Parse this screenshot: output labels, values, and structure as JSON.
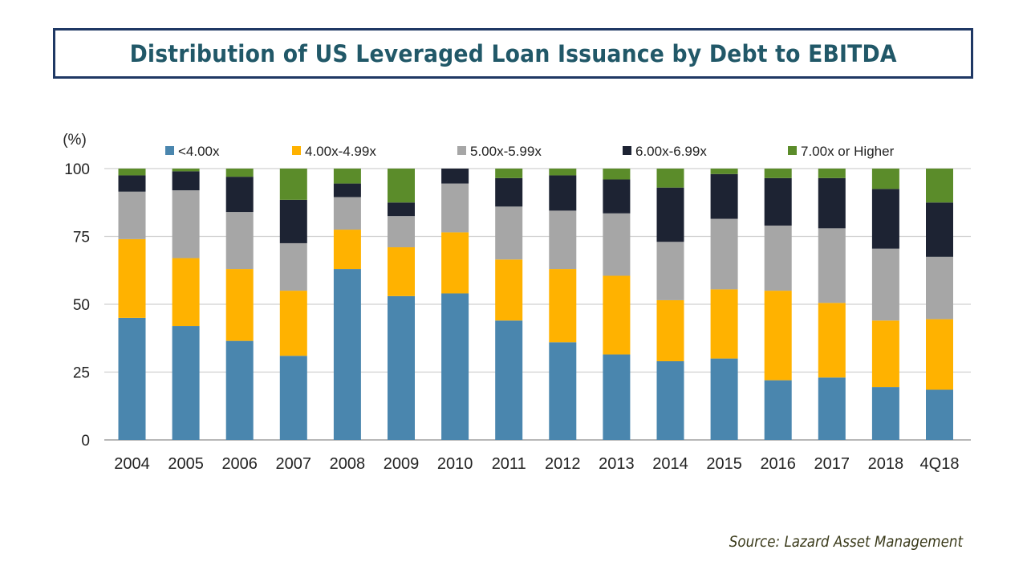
{
  "title": "Distribution of US Leveraged Loan Issuance by Debt to EBITDA",
  "source": "Source: Lazard Asset Management",
  "chart_data": {
    "type": "bar",
    "stacked": true,
    "ylabel": "(%)",
    "ylim": [
      0,
      100
    ],
    "yticks": [
      "0",
      "25",
      "50",
      "75",
      "100"
    ],
    "grid": true,
    "legend_position": "top",
    "categories": [
      "2004",
      "2005",
      "2006",
      "2007",
      "2008",
      "2009",
      "2010",
      "2011",
      "2012",
      "2013",
      "2014",
      "2015",
      "2016",
      "2017",
      "2018",
      "4Q18"
    ],
    "series": [
      {
        "name": "<4.00x",
        "color": "#4a86ae",
        "values": [
          45,
          42,
          36.5,
          31,
          63,
          53,
          54,
          44,
          36,
          31.5,
          29,
          30,
          22,
          23,
          19.5,
          18.5
        ]
      },
      {
        "name": "4.00x-4.99x",
        "color": "#ffb200",
        "values": [
          29,
          25,
          26.5,
          24,
          14.5,
          18,
          22.5,
          22.5,
          27,
          29,
          22.5,
          25.5,
          33,
          27.5,
          24.5,
          26
        ]
      },
      {
        "name": "5.00x-5.99x",
        "color": "#a6a6a6",
        "values": [
          17.5,
          25,
          21,
          17.5,
          12,
          11.5,
          18,
          19.5,
          21.5,
          23,
          21.5,
          26,
          24,
          27.5,
          26.5,
          23
        ]
      },
      {
        "name": "6.00x-6.99x",
        "color": "#1d2333",
        "values": [
          6,
          7,
          13,
          16,
          5,
          5,
          5.5,
          10.5,
          13,
          12.5,
          20,
          16.5,
          17.5,
          18.5,
          22,
          20
        ]
      },
      {
        "name": "7.00x or Higher",
        "color": "#5b8c2a",
        "values": [
          2.5,
          1,
          3,
          11.5,
          5.5,
          12.5,
          0,
          3.5,
          2.5,
          4,
          7,
          2,
          3.5,
          3.5,
          7.5,
          12.5
        ]
      }
    ]
  }
}
